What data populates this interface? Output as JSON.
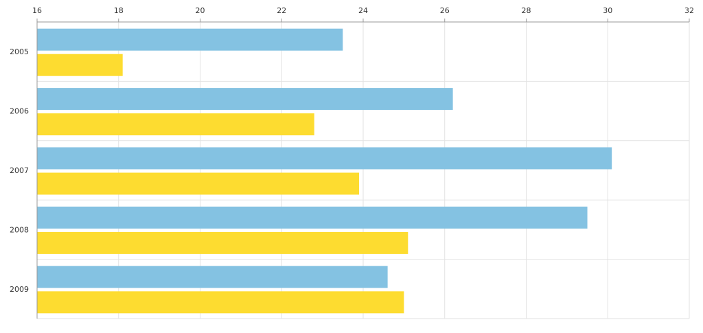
{
  "chart_data": {
    "type": "bar",
    "orientation": "horizontal",
    "title": "",
    "xlabel": "",
    "ylabel": "",
    "categories": [
      "2005",
      "2006",
      "2007",
      "2008",
      "2009"
    ],
    "series": [
      {
        "color": "#84c2e2",
        "values": [
          23.5,
          26.2,
          30.1,
          29.5,
          24.6
        ]
      },
      {
        "color": "#fddc30",
        "values": [
          18.1,
          22.8,
          23.9,
          25.1,
          25.0
        ]
      }
    ],
    "xlim": [
      16,
      32
    ],
    "x_ticks": [
      16,
      18,
      20,
      22,
      24,
      26,
      28,
      30,
      32
    ],
    "x_axis_position": "top",
    "grid": true,
    "legend": "none"
  }
}
